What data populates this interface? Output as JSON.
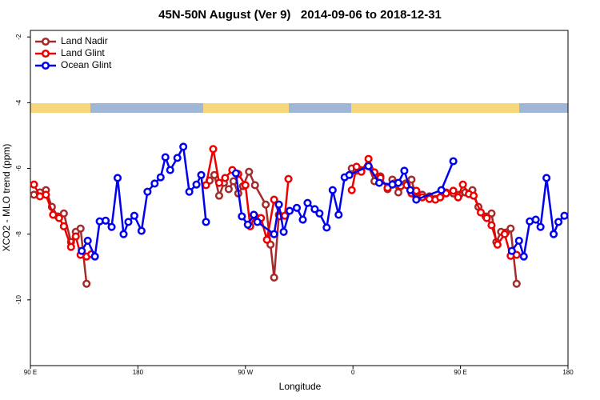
{
  "chart_data": {
    "type": "line",
    "title": "45N-50N August (Ver 9)   2014-09-06 to 2018-12-31",
    "x_label": "Longitude",
    "y_label": "XCO2 - MLO trend (ppm)",
    "xlim": [
      90,
      540
    ],
    "ylim": [
      -12,
      -1.8
    ],
    "xticks": [
      {
        "value": 90,
        "label": "90 E"
      },
      180,
      {
        "value": 270,
        "label": "90 W"
      },
      0,
      {
        "value": 450,
        "label": "90 E"
      },
      {
        "value": 540,
        "label": "180"
      }
    ],
    "yticks": [
      -2,
      -4,
      -6,
      -8,
      -10
    ],
    "legend": "top-left",
    "series": [
      {
        "name": "Land Nadir",
        "color": "#a52a2a",
        "x": [
          93,
          98,
          103,
          108,
          113,
          118,
          124,
          128,
          132,
          137,
          200,
          240,
          244,
          248,
          252,
          256,
          260,
          264,
          268,
          273,
          278,
          287,
          291,
          294,
          298,
          350,
          359,
          363,
          367,
          373,
          378,
          383,
          389,
          393,
          398,
          404,
          409,
          413,
          418,
          424,
          429,
          433,
          438,
          444,
          449,
          454,
          460,
          465,
          471,
          476,
          480,
          484,
          488,
          492,
          497
        ],
        "values": [
          -6.8,
          -6.73,
          -6.66,
          -7.17,
          -7.46,
          -7.37,
          -8.24,
          -7.93,
          -7.83,
          -9.51,
          null,
          -6.37,
          -6.2,
          -6.83,
          -6.44,
          -6.63,
          -6.39,
          -6.76,
          -6.54,
          -6.1,
          -6.51,
          -7.1,
          -8.32,
          -9.32,
          -7.41,
          null,
          -6.0,
          -6.07,
          -6.05,
          -5.93,
          -6.39,
          -6.24,
          -6.63,
          -6.34,
          -6.73,
          -6.46,
          -6.34,
          -6.9,
          -6.8,
          -6.85,
          -6.93,
          -6.88,
          -6.73,
          -6.76,
          -6.8,
          -6.73,
          -6.66,
          -7.17,
          -7.46,
          -7.37,
          -8.24,
          -7.93,
          -7.95,
          -7.83,
          -9.51
        ]
      },
      {
        "name": "Land Glint",
        "color": "#ee0000",
        "x": [
          93,
          98,
          103,
          109,
          114,
          118,
          124,
          128,
          132,
          137,
          141,
          200,
          237,
          243,
          248,
          253,
          259,
          264,
          270,
          274,
          278,
          283,
          288,
          294,
          299,
          303,
          306,
          330,
          359,
          363,
          367,
          373,
          378,
          383,
          389,
          394,
          400,
          405,
          409,
          413,
          418,
          424,
          429,
          433,
          438,
          444,
          448,
          452,
          457,
          461,
          467,
          472,
          476,
          481,
          487,
          492,
          497
        ],
        "values": [
          -6.49,
          -6.85,
          -6.8,
          -7.41,
          -7.51,
          -7.76,
          -8.39,
          -8.07,
          -8.63,
          -8.68,
          -8.61,
          null,
          -6.51,
          -5.41,
          -6.44,
          -6.29,
          -6.05,
          -6.17,
          -6.51,
          -7.76,
          -7.46,
          -7.51,
          -8.17,
          -6.95,
          -7.46,
          -7.44,
          -6.32,
          null,
          -6.66,
          -5.95,
          -6.1,
          -5.71,
          -6.12,
          -6.29,
          -6.59,
          -6.46,
          -6.54,
          -6.51,
          -6.76,
          -6.68,
          -6.88,
          -6.93,
          -6.95,
          -6.88,
          -6.76,
          -6.68,
          -6.88,
          -6.49,
          -6.78,
          -6.83,
          -7.34,
          -7.51,
          -7.73,
          -8.32,
          -8.0,
          -8.66,
          -8.63
        ]
      },
      {
        "name": "Ocean Glint",
        "color": "#0000ee",
        "x": [
          133,
          138,
          144,
          148,
          153,
          158,
          163,
          168,
          172,
          177,
          183,
          188,
          194,
          199,
          203,
          207,
          213,
          218,
          223,
          229,
          233,
          237,
          250,
          262,
          267,
          272,
          277,
          280,
          294,
          298,
          302,
          307,
          313,
          318,
          322,
          328,
          332,
          338,
          343,
          348,
          353,
          357,
          373,
          382,
          393,
          398,
          403,
          408,
          413,
          434,
          444,
          470,
          493,
          499,
          503,
          508,
          513,
          517,
          522,
          528,
          532,
          537
        ],
        "values": [
          -8.51,
          -8.2,
          -8.68,
          -7.61,
          -7.59,
          -7.78,
          -6.29,
          -8.0,
          -7.63,
          -7.44,
          -7.9,
          -6.71,
          -6.46,
          -6.27,
          -5.66,
          -6.05,
          -5.68,
          -5.34,
          -6.71,
          -6.49,
          -6.2,
          -7.63,
          null,
          -6.15,
          -7.46,
          -7.71,
          -7.41,
          -7.63,
          -8.0,
          -7.1,
          -7.93,
          -7.29,
          -7.2,
          -7.56,
          -7.05,
          -7.24,
          -7.37,
          -7.8,
          -6.66,
          -7.41,
          -6.27,
          -6.2,
          -5.93,
          -6.44,
          -6.49,
          -6.44,
          -6.07,
          -6.66,
          -6.95,
          -6.66,
          -5.78,
          null,
          -8.51,
          -8.2,
          -8.68,
          -7.61,
          -7.56,
          -7.78,
          -6.29,
          -8.0,
          -7.63,
          -7.44
        ]
      }
    ]
  }
}
